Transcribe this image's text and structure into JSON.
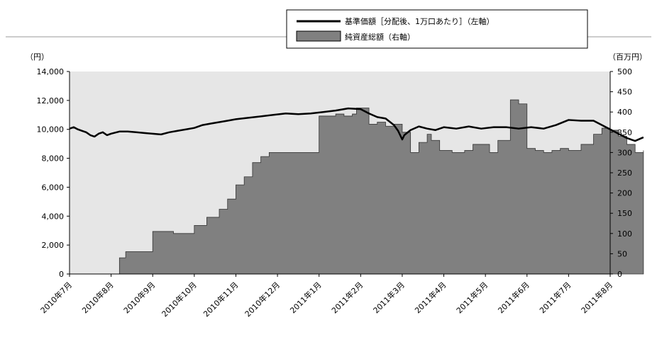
{
  "chart_data": {
    "type": "line+area",
    "left_unit": "（円）",
    "right_unit": "（百万円）",
    "legend": [
      {
        "label": "基準価額［分配後、1万口あたり］（左軸）",
        "kind": "line",
        "color": "#000000"
      },
      {
        "label": "純資産総額（右軸）",
        "kind": "area",
        "color": "#808080"
      }
    ],
    "y_left": {
      "min": 0,
      "max": 14000,
      "ticks": [
        "0",
        "2,000",
        "4,000",
        "6,000",
        "8,000",
        "10,000",
        "12,000",
        "14,000"
      ]
    },
    "y_right": {
      "min": 0,
      "max": 500,
      "ticks": [
        "0",
        "50",
        "100",
        "150",
        "200",
        "250",
        "300",
        "350",
        "400",
        "450",
        "500"
      ]
    },
    "x_ticks": [
      "2010年7月",
      "2010年8月",
      "2010年9月",
      "2010年10月",
      "2010年11月",
      "2010年12月",
      "2011年1月",
      "2011年2月",
      "2011年3月",
      "2011年4月",
      "2011年5月",
      "2011年6月",
      "2011年7月",
      "2011年8月"
    ],
    "plot_background": "#e6e6e6",
    "nav_series": {
      "name": "基準価額",
      "x": [
        0,
        0.1,
        0.2,
        0.3,
        0.4,
        0.5,
        0.6,
        0.7,
        0.8,
        0.9,
        1.0,
        1.2,
        1.4,
        1.6,
        1.8,
        2.0,
        2.2,
        2.4,
        2.6,
        2.8,
        3.0,
        3.2,
        3.4,
        3.6,
        3.8,
        4.0,
        4.3,
        4.6,
        4.9,
        5.2,
        5.5,
        5.8,
        6.1,
        6.4,
        6.7,
        7.0,
        7.2,
        7.4,
        7.6,
        7.8,
        7.9,
        8.0,
        8.05,
        8.2,
        8.4,
        8.6,
        8.8,
        9.0,
        9.3,
        9.6,
        9.9,
        10.2,
        10.5,
        10.8,
        11.1,
        11.4,
        11.7,
        12.0,
        12.3,
        12.6,
        12.8,
        13.0,
        13.2,
        13.4,
        13.6,
        13.8
      ],
      "values": [
        10050,
        10150,
        10000,
        9900,
        9800,
        9600,
        9500,
        9700,
        9800,
        9600,
        9700,
        9850,
        9850,
        9800,
        9750,
        9700,
        9650,
        9800,
        9900,
        10000,
        10100,
        10300,
        10400,
        10500,
        10600,
        10700,
        10800,
        10900,
        11000,
        11100,
        11050,
        11100,
        11200,
        11300,
        11450,
        11400,
        11100,
        10850,
        10750,
        10300,
        9900,
        9300,
        9600,
        9950,
        10200,
        10050,
        9950,
        10150,
        10050,
        10200,
        10050,
        10150,
        10150,
        10050,
        10150,
        10050,
        10300,
        10650,
        10600,
        10600,
        10300,
        10000,
        9700,
        9400,
        9200,
        9450
      ]
    },
    "aum_series": {
      "name": "純資産総額",
      "x": [
        0,
        1.1,
        1.2,
        1.35,
        1.6,
        1.9,
        2.0,
        2.4,
        2.5,
        2.9,
        3.0,
        3.3,
        3.4,
        3.6,
        3.8,
        4.0,
        4.2,
        4.3,
        4.4,
        4.6,
        4.8,
        5.0,
        5.4,
        5.6,
        6.0,
        6.1,
        6.4,
        6.6,
        6.8,
        6.9,
        7.2,
        7.4,
        7.6,
        7.8,
        8.0,
        8.2,
        8.4,
        8.6,
        8.7,
        8.9,
        9.2,
        9.5,
        9.7,
        10.0,
        10.1,
        10.3,
        10.4,
        10.6,
        10.8,
        11.0,
        11.2,
        11.4,
        11.6,
        11.8,
        12.0,
        12.3,
        12.6,
        12.8,
        13.0,
        13.2,
        13.4,
        13.6,
        13.8
      ],
      "values": [
        0,
        0,
        40,
        55,
        55,
        55,
        105,
        105,
        100,
        100,
        120,
        140,
        140,
        160,
        185,
        220,
        240,
        240,
        275,
        290,
        300,
        300,
        300,
        300,
        390,
        390,
        395,
        390,
        395,
        410,
        370,
        375,
        365,
        370,
        350,
        300,
        325,
        345,
        330,
        305,
        300,
        305,
        320,
        320,
        300,
        330,
        330,
        430,
        420,
        310,
        305,
        300,
        305,
        310,
        305,
        320,
        345,
        360,
        355,
        340,
        320,
        300,
        305
      ]
    }
  }
}
